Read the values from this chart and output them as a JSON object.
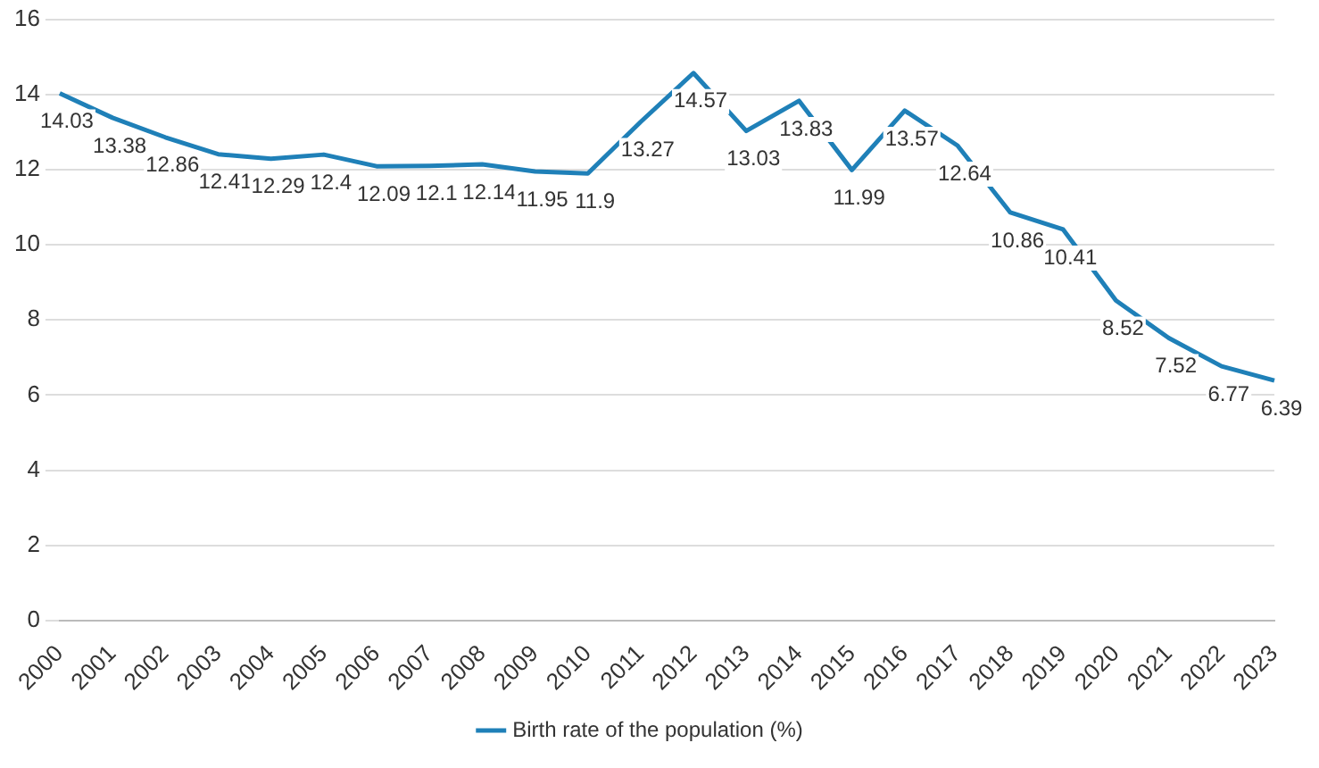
{
  "chart_data": {
    "type": "line",
    "categories": [
      "2000",
      "2001",
      "2002",
      "2003",
      "2004",
      "2005",
      "2006",
      "2007",
      "2008",
      "2009",
      "2010",
      "2011",
      "2012",
      "2013",
      "2014",
      "2015",
      "2016",
      "2017",
      "2018",
      "2019",
      "2020",
      "2021",
      "2022",
      "2023"
    ],
    "series": [
      {
        "name": "Birth rate of the population (%)",
        "color": "#1f80b8",
        "values": [
          14.03,
          13.38,
          12.86,
          12.41,
          12.29,
          12.4,
          12.09,
          12.1,
          12.14,
          11.95,
          11.9,
          13.27,
          14.57,
          13.03,
          13.83,
          11.99,
          13.57,
          12.64,
          10.86,
          10.41,
          8.52,
          7.52,
          6.77,
          6.39
        ]
      }
    ],
    "ylim": [
      0,
      16
    ],
    "yticks": [
      0,
      2,
      4,
      6,
      8,
      10,
      12,
      14,
      16
    ],
    "grid": "y",
    "legend": "bottom",
    "marker": "none",
    "line_style": "solid",
    "data_labels": true
  }
}
